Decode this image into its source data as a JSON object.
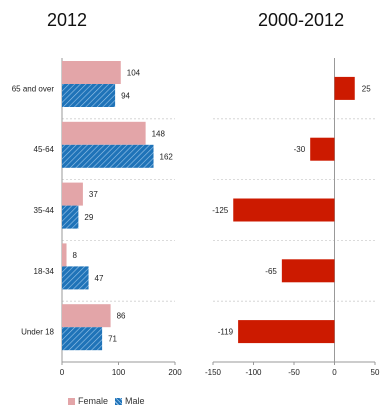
{
  "chart_data": [
    {
      "type": "bar",
      "orientation": "horizontal",
      "title": "2012",
      "categories": [
        "65 and over",
        "45-64",
        "35-44",
        "18-34",
        "Under 18"
      ],
      "series": [
        {
          "name": "Female",
          "values": [
            104,
            148,
            37,
            8,
            86
          ],
          "color": "#e3a5a8",
          "pattern": "solid"
        },
        {
          "name": "Male",
          "values": [
            94,
            162,
            29,
            47,
            71
          ],
          "color": "#1f73b8",
          "pattern": "diagonal-hatch"
        }
      ],
      "xlim": [
        0,
        200
      ],
      "xticks": [
        0,
        100,
        200
      ],
      "grid": "horizontal-dashed",
      "legend": "bottom-left",
      "legend_entries": [
        "Female",
        "Male"
      ]
    },
    {
      "type": "bar",
      "orientation": "horizontal",
      "title": "2000-2012",
      "categories": [
        "65 and over",
        "45-64",
        "35-44",
        "18-34",
        "Under 18"
      ],
      "series": [
        {
          "values": [
            25,
            -30,
            -125,
            -65,
            -119
          ],
          "color": "#cc1a00"
        }
      ],
      "xlim": [
        -150,
        50
      ],
      "xticks": [
        -150,
        -100,
        -50,
        0,
        50
      ],
      "grid": "horizontal-dashed"
    }
  ]
}
